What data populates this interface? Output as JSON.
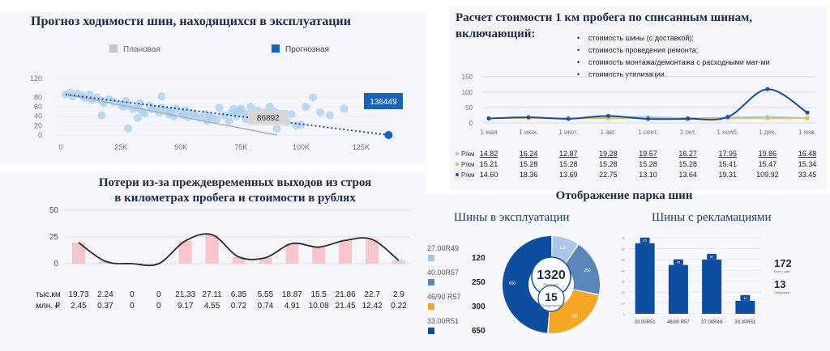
{
  "scatter": {
    "title": "Прогноз ходимости шин, находящихся в эксплуатации",
    "legend": [
      {
        "label": "Плановая",
        "color": "#c8c8c8"
      },
      {
        "label": "Прогнозная",
        "color": "#1565c0"
      }
    ],
    "callout_plan": "86892",
    "callout_forecast": "136449"
  },
  "cost": {
    "title_line1": "Расчет стоимости 1 км пробега по списанным шинам,",
    "title_line2": "включающий:",
    "bullets": [
      "стоимость шины (с доставкой);",
      "стоимость проведения ремонта;",
      "стоимость монтажа/демонтажа с расходными мат-ми",
      "стоимость утилизации."
    ]
  },
  "losses": {
    "title_line1": "Потери из-за преждевременных выходов из строя",
    "title_line2": "в километрах пробега и стоимости в рублях"
  },
  "fleet": {
    "title": "Отображение парка шин",
    "in_use_title": "Шины в эксплуатации",
    "claims_title": "Шины с рекламациями"
  },
  "chart_data": [
    {
      "type": "scatter",
      "title": "Прогноз ходимости шин, находящихся в эксплуатации",
      "x_ticks": [
        "0",
        "25K",
        "50K",
        "75K",
        "100K",
        "125K"
      ],
      "y_ticks": [
        "0",
        "20",
        "40",
        "60",
        "80",
        "120"
      ],
      "xlim": [
        0,
        137000
      ],
      "ylim": [
        0,
        120
      ],
      "series": [
        {
          "name": "Плановая",
          "points": [
            [
              2000,
              86
            ],
            [
              4000,
              90
            ],
            [
              5000,
              82
            ],
            [
              7000,
              88
            ],
            [
              9000,
              84
            ],
            [
              10000,
              78
            ],
            [
              12000,
              86
            ],
            [
              13000,
              74
            ],
            [
              15000,
              80
            ],
            [
              17000,
              72
            ],
            [
              18000,
              68
            ],
            [
              20000,
              76
            ],
            [
              22000,
              70
            ],
            [
              25000,
              65
            ],
            [
              26000,
              60
            ],
            [
              27000,
              72
            ],
            [
              28000,
              62
            ],
            [
              30000,
              55
            ],
            [
              32000,
              58
            ],
            [
              33000,
              68
            ],
            [
              34000,
              50
            ],
            [
              35000,
              46
            ],
            [
              37000,
              62
            ],
            [
              38000,
              55
            ],
            [
              40000,
              54
            ],
            [
              41000,
              48
            ],
            [
              42000,
              58
            ],
            [
              44000,
              52
            ],
            [
              45000,
              44
            ],
            [
              46000,
              50
            ],
            [
              47000,
              40
            ],
            [
              48000,
              56
            ],
            [
              50000,
              48
            ],
            [
              51000,
              42
            ],
            [
              52000,
              52
            ],
            [
              53000,
              38
            ],
            [
              55000,
              46
            ],
            [
              56000,
              42
            ],
            [
              58000,
              36
            ],
            [
              60000,
              44
            ],
            [
              61000,
              30
            ],
            [
              62000,
              40
            ],
            [
              63000,
              36
            ],
            [
              65000,
              34
            ],
            [
              66000,
              58
            ],
            [
              68000,
              42
            ],
            [
              70000,
              30
            ],
            [
              71000,
              48
            ],
            [
              72000,
              55
            ],
            [
              73000,
              40
            ],
            [
              74000,
              52
            ],
            [
              75000,
              56
            ],
            [
              76000,
              46
            ],
            [
              77000,
              34
            ],
            [
              78000,
              44
            ],
            [
              79000,
              60
            ],
            [
              80000,
              42
            ],
            [
              81000,
              35
            ],
            [
              82000,
              52
            ],
            [
              84000,
              45
            ],
            [
              85000,
              48
            ],
            [
              86000,
              38
            ],
            [
              87000,
              60
            ],
            [
              89000,
              50
            ],
            [
              90000,
              14
            ],
            [
              92000,
              34
            ],
            [
              94000,
              28
            ],
            [
              96000,
              44
            ],
            [
              98000,
              20
            ],
            [
              100000,
              22
            ],
            [
              102000,
              60
            ],
            [
              105000,
              80
            ],
            [
              108000,
              48
            ],
            [
              112000,
              42
            ],
            [
              118000,
              56
            ],
            [
              17000,
              42
            ],
            [
              28000,
              14
            ],
            [
              42000,
              82
            ],
            [
              32000,
              36
            ]
          ]
        },
        {
          "name": "Прогнозная",
          "points": [
            [
              136449,
              0
            ]
          ]
        }
      ],
      "labels": [
        "86892",
        "136449"
      ]
    },
    {
      "type": "line",
      "title": "Расчет стоимости 1 км пробега по списанным шинам, включающий:",
      "categories": [
        "1 мая",
        "1 июн.",
        "1 июл.",
        "1 авг.",
        "1 сент.",
        "1 окт.",
        "1 нояб.",
        "1 дек.",
        "1 янв."
      ],
      "y_ticks": [
        "0",
        "50",
        "100",
        "150"
      ],
      "ylim": [
        0,
        150
      ],
      "series": [
        {
          "name": "Р/км",
          "values": [
            14.82,
            16.24,
            12.87,
            19.28,
            19.57,
            16.27,
            17.95,
            19.86,
            16.48
          ],
          "color": "#90caf9"
        },
        {
          "name": "Р/км",
          "values": [
            15.21,
            15.28,
            15.28,
            15.28,
            15.28,
            15.28,
            15.41,
            15.47,
            15.34
          ],
          "color": "#f4b63f"
        },
        {
          "name": "Р/км",
          "values": [
            14.6,
            18.36,
            13.69,
            22.75,
            13.1,
            13.64,
            19.31,
            109.92,
            33.45
          ],
          "color": "#1a4fa0"
        }
      ]
    },
    {
      "type": "bar",
      "title": "Потери из-за преждевременных выходов из строя в километрах пробега и стоимости в рублях",
      "y_ticks": [
        "0",
        "25",
        "50"
      ],
      "ylim": [
        0,
        50
      ],
      "series": [
        {
          "name": "тыс.км",
          "values": [
            19.73,
            2.24,
            0,
            0,
            21.33,
            27.11,
            6.35,
            5.55,
            18.87,
            15.5,
            21.86,
            22.7,
            2.9
          ]
        },
        {
          "name": "млн. ₽",
          "values": [
            2.45,
            0.37,
            0,
            0,
            9.17,
            4.55,
            0.72,
            0.74,
            4.91,
            10.08,
            21.45,
            12.42,
            0.22
          ]
        }
      ]
    },
    {
      "type": "pie",
      "title": "Шины в эксплуатации",
      "categories": [
        "27.00R49",
        "40.00R57",
        "46/90 R57",
        "33.00R51"
      ],
      "values": [
        120,
        250,
        300,
        650
      ],
      "colors": [
        "#a9c6e8",
        "#5b86b8",
        "#f5a623",
        "#0d4ea1"
      ],
      "center_total": "1320",
      "center_total_caption": "Всего шин",
      "center_count": "15",
      "center_count_caption": "Предприятий",
      "slice_labels": [
        "120",
        "250",
        "300",
        "650"
      ]
    },
    {
      "type": "bar",
      "title": "Шины с рекламациями",
      "categories": [
        "33.00R51",
        "46/90 R57",
        "27.00R49",
        "33.00R51"
      ],
      "values": [
        65,
        45,
        50,
        12
      ],
      "value_labels": [
        "65",
        "45",
        "50",
        "12"
      ],
      "y_ticks": [
        "0",
        "10",
        "20",
        "30",
        "40",
        "50",
        "60",
        "70"
      ],
      "ylim": [
        0,
        70
      ],
      "total": "172",
      "total_caption": "Всего шин",
      "count": "13",
      "count_caption": "Предприят"
    }
  ]
}
